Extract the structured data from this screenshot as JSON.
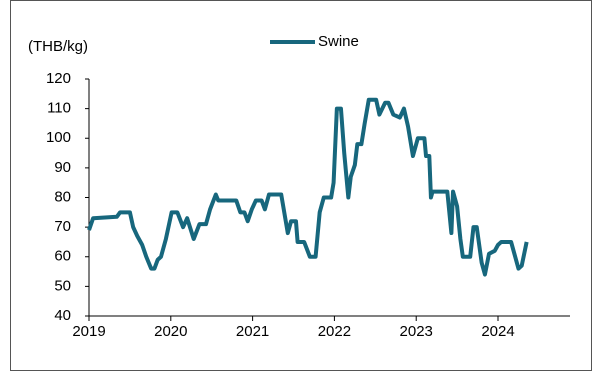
{
  "chart_data": {
    "type": "line",
    "y_label": "(THB/kg)",
    "series": [
      {
        "name": "Swine",
        "color": "#17677d",
        "x": [
          2019.0,
          2019.05,
          2019.34,
          2019.38,
          2019.5,
          2019.54,
          2019.59,
          2019.65,
          2019.7,
          2019.76,
          2019.8,
          2019.84,
          2019.88,
          2019.94,
          2020.01,
          2020.08,
          2020.15,
          2020.2,
          2020.28,
          2020.35,
          2020.43,
          2020.48,
          2020.55,
          2020.58,
          2020.8,
          2020.85,
          2020.9,
          2020.94,
          2020.99,
          2021.04,
          2021.11,
          2021.15,
          2021.2,
          2021.35,
          2021.43,
          2021.47,
          2021.53,
          2021.55,
          2021.63,
          2021.7,
          2021.77,
          2021.82,
          2021.87,
          2021.96,
          2021.99,
          2022.03,
          2022.08,
          2022.12,
          2022.17,
          2022.2,
          2022.25,
          2022.28,
          2022.33,
          2022.37,
          2022.42,
          2022.51,
          2022.55,
          2022.62,
          2022.66,
          2022.72,
          2022.8,
          2022.85,
          2022.9,
          2022.96,
          2023.02,
          2023.1,
          2023.12,
          2023.16,
          2023.18,
          2023.2,
          2023.38,
          2023.43,
          2023.45,
          2023.5,
          2023.54,
          2023.57,
          2023.66,
          2023.7,
          2023.74,
          2023.8,
          2023.84,
          2023.89,
          2023.96,
          2024.0,
          2024.04,
          2024.16,
          2024.21,
          2024.25,
          2024.29,
          2024.35
        ],
        "values": [
          69,
          73,
          73.5,
          75,
          75,
          70,
          67,
          64,
          60,
          56,
          56,
          59,
          60,
          66,
          75,
          75,
          70,
          73,
          66,
          71,
          71,
          76,
          81,
          79,
          79,
          75,
          75,
          72,
          76,
          79,
          79,
          76,
          81,
          81,
          68,
          72,
          72,
          65,
          65,
          60,
          60,
          75,
          80,
          80,
          85,
          110,
          110,
          95,
          80,
          87,
          91,
          98,
          98,
          105,
          113,
          113,
          108,
          112,
          112,
          108,
          107,
          110,
          104,
          94,
          100,
          100,
          94,
          94,
          80,
          82,
          82,
          68,
          82,
          77,
          66,
          60,
          60,
          70,
          70,
          58,
          54,
          61,
          62,
          64,
          65,
          65,
          60,
          56,
          57,
          65
        ]
      }
    ],
    "xlim": [
      2019,
      2024.88
    ],
    "xticks": [
      2019,
      2020,
      2021,
      2022,
      2023,
      2024
    ],
    "ylim": [
      40,
      120
    ],
    "yticks": [
      40,
      50,
      60,
      70,
      80,
      90,
      100,
      110,
      120
    ]
  }
}
